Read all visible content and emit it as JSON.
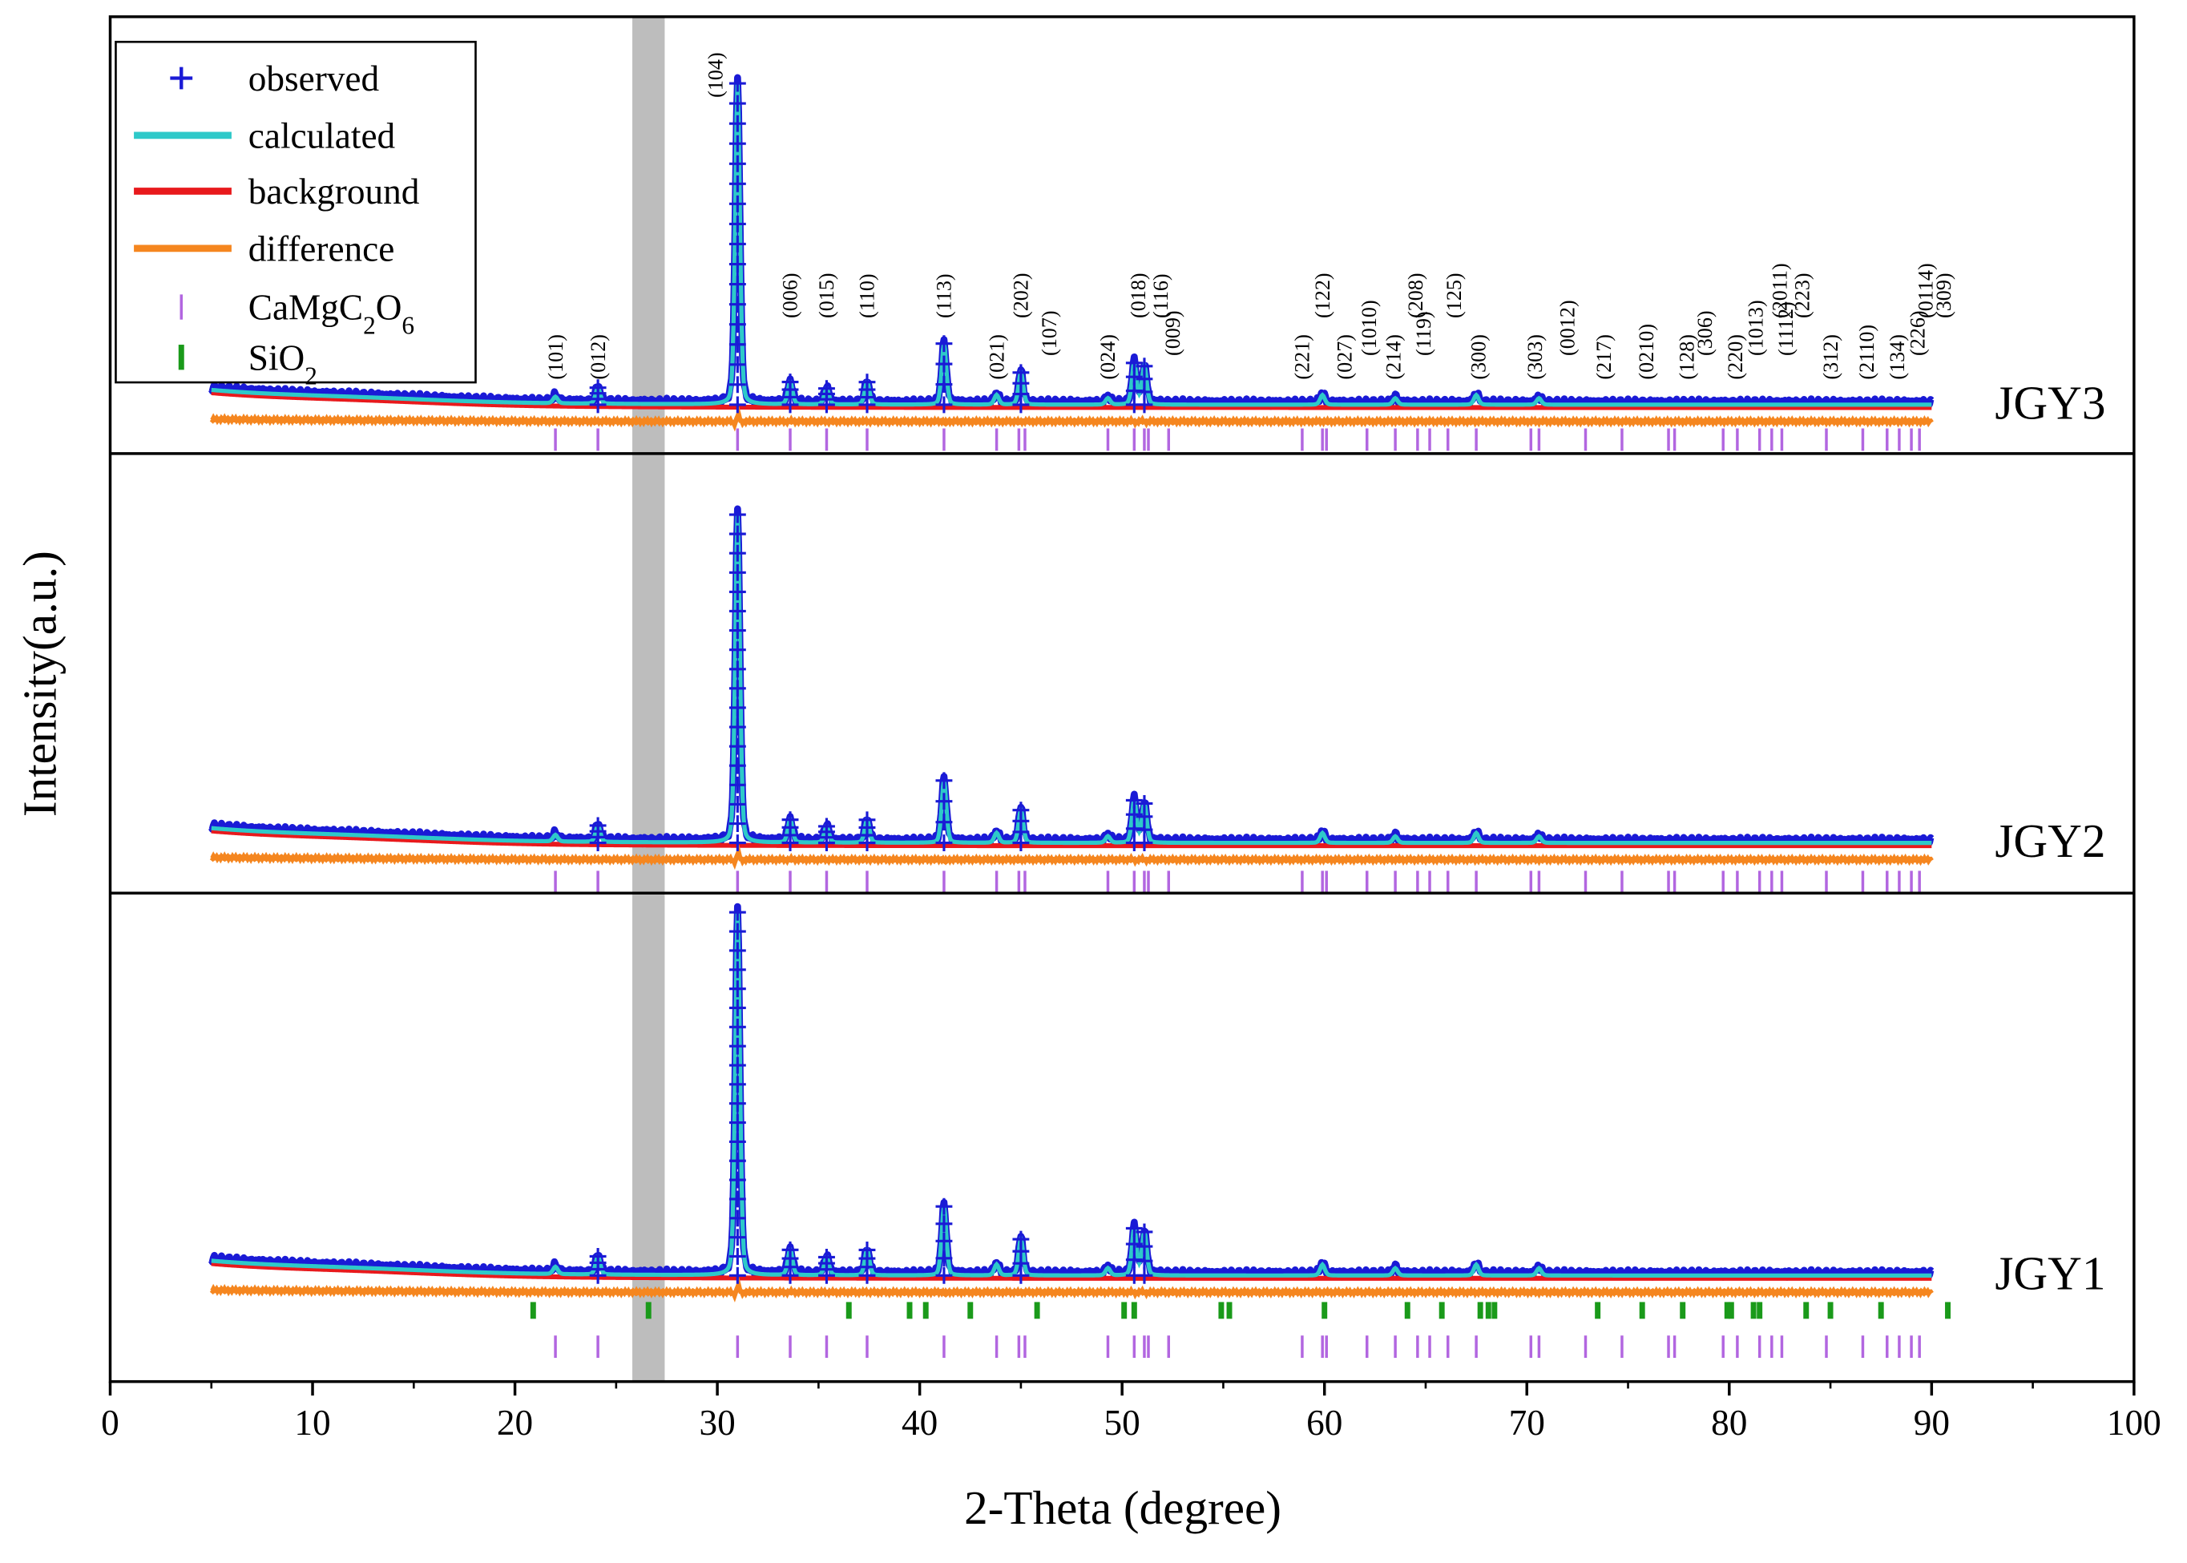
{
  "chart_data": {
    "type": "line",
    "xlabel": "2-Theta (degree)",
    "ylabel": "Intensity(a.u.)",
    "xlim": [
      0,
      100
    ],
    "xticks": [
      "0",
      "10",
      "20",
      "30",
      "40",
      "50",
      "60",
      "70",
      "80",
      "90",
      "100"
    ],
    "x_range_data": [
      5,
      90
    ],
    "shaded_band": [
      25.8,
      27.4
    ],
    "legend": {
      "position": "top-left",
      "entries": [
        {
          "label": "observed",
          "marker": "+",
          "color": "#1a1ad6"
        },
        {
          "label": "calculated",
          "marker": "line",
          "color": "#2ec9c9"
        },
        {
          "label": "background",
          "marker": "line",
          "color": "#e8191c"
        },
        {
          "label": "difference",
          "marker": "line",
          "color": "#f5861f"
        },
        {
          "label": "CaMgC2O6",
          "marker": "tick",
          "color": "#b266e0"
        },
        {
          "label": "SiO2",
          "marker": "tick",
          "color": "#1a9a1a"
        }
      ]
    },
    "colors": {
      "observed": "#1a1ad6",
      "calculated": "#2ec9c9",
      "background": "#e8191c",
      "difference": "#f5861f",
      "camgc2o6_tick": "#b266e0",
      "sio2_tick": "#1a9a1a",
      "band": "#bdbdbd"
    },
    "panels": [
      {
        "name": "JGY3",
        "peak_scale": 1.0,
        "show_sio2": false
      },
      {
        "name": "JGY2",
        "peak_scale": 1.0,
        "show_sio2": false
      },
      {
        "name": "JGY1",
        "peak_scale": 1.0,
        "show_sio2": true
      }
    ],
    "peaks": [
      {
        "two_theta": 22.0,
        "intensity": 0.02
      },
      {
        "two_theta": 24.1,
        "intensity": 0.05
      },
      {
        "two_theta": 31.0,
        "intensity": 1.0
      },
      {
        "two_theta": 33.6,
        "intensity": 0.07
      },
      {
        "two_theta": 35.4,
        "intensity": 0.05
      },
      {
        "two_theta": 37.4,
        "intensity": 0.07
      },
      {
        "two_theta": 41.2,
        "intensity": 0.19
      },
      {
        "two_theta": 43.8,
        "intensity": 0.03
      },
      {
        "two_theta": 45.0,
        "intensity": 0.1
      },
      {
        "two_theta": 49.3,
        "intensity": 0.02
      },
      {
        "two_theta": 50.6,
        "intensity": 0.13
      },
      {
        "two_theta": 51.1,
        "intensity": 0.12
      },
      {
        "two_theta": 59.9,
        "intensity": 0.03
      },
      {
        "two_theta": 63.5,
        "intensity": 0.02
      },
      {
        "two_theta": 67.5,
        "intensity": 0.03
      },
      {
        "two_theta": 70.6,
        "intensity": 0.02
      }
    ],
    "camgc2o6_ticks": [
      22.0,
      24.1,
      31.0,
      33.6,
      35.4,
      37.4,
      41.2,
      43.8,
      44.9,
      45.2,
      49.3,
      50.6,
      51.1,
      51.3,
      52.3,
      58.9,
      59.9,
      60.1,
      62.1,
      63.5,
      64.6,
      65.2,
      66.1,
      67.5,
      70.2,
      70.6,
      72.9,
      74.7,
      77.0,
      77.3,
      79.7,
      80.4,
      81.5,
      82.1,
      82.6,
      84.8,
      86.6,
      87.8,
      88.4,
      89.0,
      89.4
    ],
    "sio2_ticks": [
      20.9,
      26.6,
      36.5,
      39.5,
      40.3,
      42.5,
      45.8,
      50.1,
      50.6,
      54.9,
      55.3,
      60.0,
      64.1,
      65.8,
      67.7,
      68.1,
      68.4,
      73.5,
      75.7,
      77.7,
      79.9,
      80.1,
      81.2,
      81.5,
      83.8,
      85.0,
      87.5,
      90.8
    ],
    "hkl_labels": [
      {
        "x": 22.0,
        "label": "(101)"
      },
      {
        "x": 24.1,
        "label": "(012)"
      },
      {
        "x": 29.9,
        "label": "(104)"
      },
      {
        "x": 33.6,
        "label": "(006)"
      },
      {
        "x": 35.4,
        "label": "(015)"
      },
      {
        "x": 37.4,
        "label": "(110)"
      },
      {
        "x": 41.2,
        "label": "(113)"
      },
      {
        "x": 43.8,
        "label": "(021)"
      },
      {
        "x": 45.0,
        "label": "(202)"
      },
      {
        "x": 46.4,
        "label": "(107)"
      },
      {
        "x": 49.3,
        "label": "(024)"
      },
      {
        "x": 50.8,
        "label": "(018)"
      },
      {
        "x": 51.9,
        "label": "(116)"
      },
      {
        "x": 52.5,
        "label": "(009)"
      },
      {
        "x": 58.9,
        "label": "(221)"
      },
      {
        "x": 59.9,
        "label": "(122)"
      },
      {
        "x": 61.0,
        "label": "(027)"
      },
      {
        "x": 62.2,
        "label": "(1010)"
      },
      {
        "x": 63.4,
        "label": "(214)"
      },
      {
        "x": 64.5,
        "label": "(208)"
      },
      {
        "x": 64.9,
        "label": "(119)"
      },
      {
        "x": 66.4,
        "label": "(125)"
      },
      {
        "x": 67.6,
        "label": "(300)"
      },
      {
        "x": 70.4,
        "label": "(303)"
      },
      {
        "x": 72.0,
        "label": "(0012)"
      },
      {
        "x": 73.8,
        "label": "(217)"
      },
      {
        "x": 75.9,
        "label": "(0210)"
      },
      {
        "x": 77.9,
        "label": "(128)"
      },
      {
        "x": 78.8,
        "label": "(306)"
      },
      {
        "x": 80.3,
        "label": "(220)"
      },
      {
        "x": 81.3,
        "label": "(1013)"
      },
      {
        "x": 82.5,
        "label": "(2011)"
      },
      {
        "x": 82.8,
        "label": "(1112)"
      },
      {
        "x": 83.6,
        "label": "(223)"
      },
      {
        "x": 85.0,
        "label": "(312)"
      },
      {
        "x": 86.8,
        "label": "(2110)"
      },
      {
        "x": 88.3,
        "label": "(134)"
      },
      {
        "x": 89.3,
        "label": "(226)"
      },
      {
        "x": 89.7,
        "label": "(0114)"
      },
      {
        "x": 90.6,
        "label": "(309)"
      }
    ]
  }
}
